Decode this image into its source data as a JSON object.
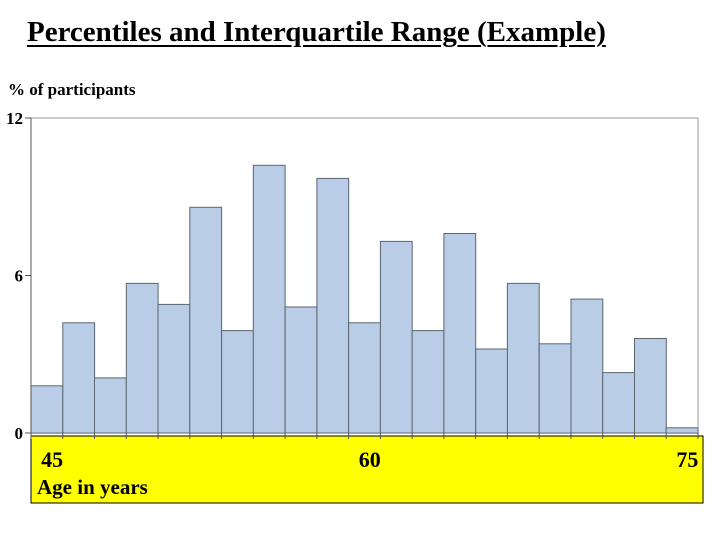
{
  "slide": {
    "title": "Percentiles and Interquartile Range (Example)"
  },
  "colors": {
    "bar_fill": "#b9cde6",
    "bar_stroke": "#5a6570",
    "frame_stroke": "#9a9a9a",
    "highlight": "#ffff00"
  },
  "chart_data": {
    "type": "bar",
    "subtype": "histogram",
    "ylabel": "% of participants",
    "xlabel": "Age in years",
    "ylim": [
      0,
      12
    ],
    "yticks": [
      "0",
      "6",
      "12"
    ],
    "xlim": [
      44,
      75.5
    ],
    "xticks": [
      {
        "value": 45,
        "label": "45"
      },
      {
        "value": 60,
        "label": "60"
      },
      {
        "value": 75,
        "label": "75"
      }
    ],
    "bin_start": 44,
    "bin_width": 1.5,
    "values": [
      1.8,
      4.2,
      2.1,
      5.7,
      4.9,
      8.6,
      3.9,
      10.2,
      4.8,
      9.7,
      4.2,
      7.3,
      3.9,
      7.6,
      3.2,
      5.7,
      3.4,
      5.1,
      2.3,
      3.6,
      0.2
    ],
    "grid": false,
    "legend": "none",
    "x_axis_highlight": "yellow"
  }
}
